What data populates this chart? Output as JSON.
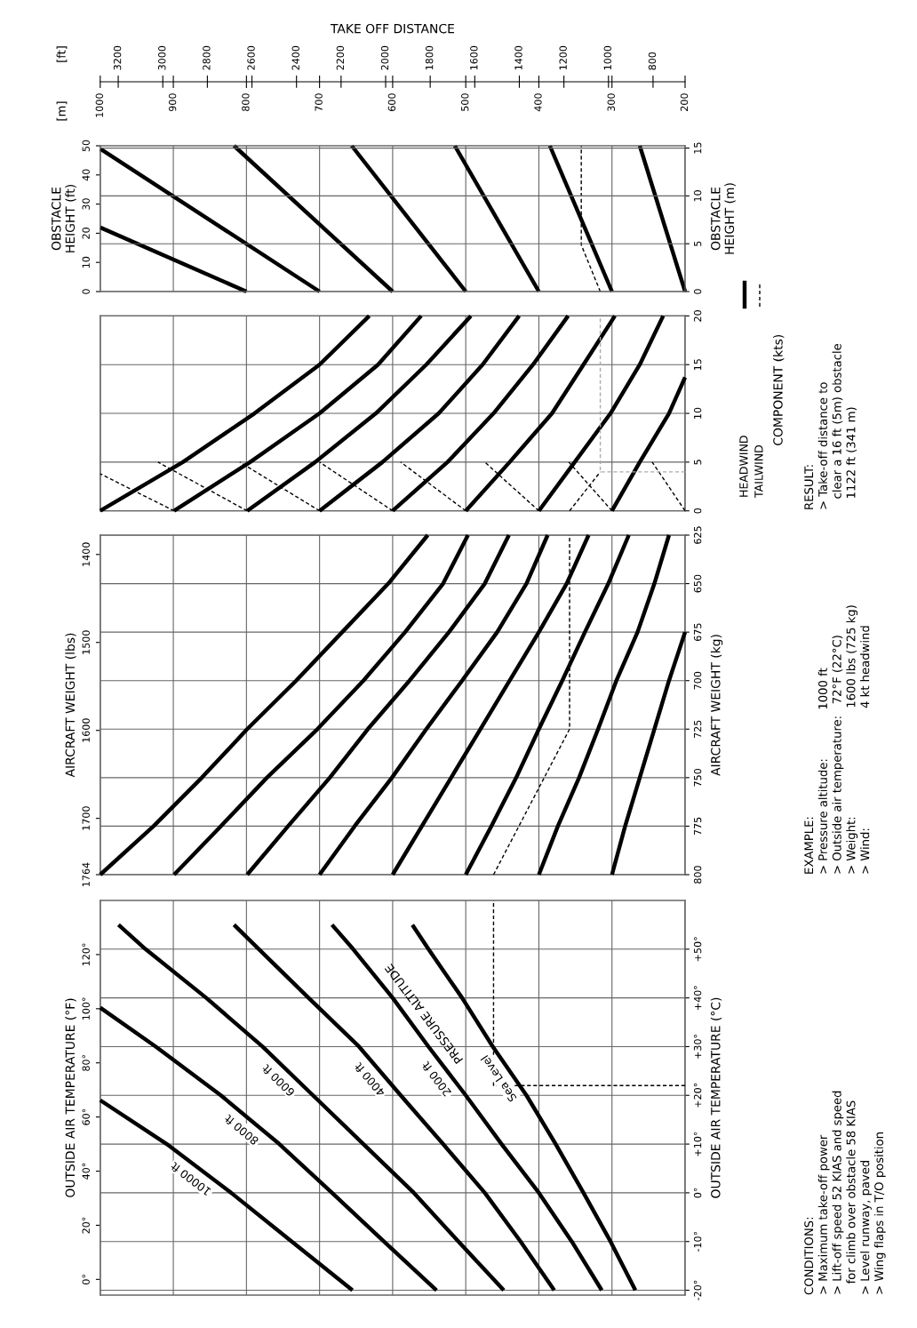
{
  "chart_data": [
    {
      "type": "line",
      "xlabel": "TAKE OFF DISTANCE",
      "ylabel": "OBSTACLE\nHEIGHT (ft)",
      "y2label": "OBSTACLE\nHEIGHT (m)",
      "xlim": [
        1000,
        200
      ],
      "xticks": [
        1000,
        900,
        800,
        700,
        600,
        500,
        400,
        300,
        200
      ],
      "x2lim": [
        3280.8,
        656.2
      ],
      "x2ticks": [
        3200,
        3000,
        2800,
        2600,
        2400,
        2200,
        2000,
        1800,
        1600,
        1400,
        1200,
        1000,
        800
      ],
      "ylim": [
        0,
        50
      ],
      "yticks": [
        0,
        10,
        20,
        30,
        40,
        50
      ],
      "y2lim": [
        0,
        15.24
      ],
      "y2ticks": [
        0,
        5,
        10,
        15
      ],
      "grid": true,
      "annotations": [
        "[m]",
        "[ft]"
      ],
      "series": [
        {
          "color": "#000000",
          "x": [
            800,
            1000
          ],
          "values": [
            0,
            22
          ]
        },
        {
          "color": "#000000",
          "x": [
            700,
            1000
          ],
          "values": [
            0,
            49
          ]
        },
        {
          "color": "#000000",
          "x": [
            600,
            817
          ],
          "values": [
            0,
            50
          ]
        },
        {
          "color": "#000000",
          "x": [
            500,
            656
          ],
          "values": [
            0,
            50
          ]
        },
        {
          "color": "#000000",
          "x": [
            400,
            515
          ],
          "values": [
            0,
            50
          ]
        },
        {
          "color": "#000000",
          "x": [
            300,
            385
          ],
          "values": [
            0,
            50
          ]
        },
        {
          "color": "#000000",
          "x": [
            200,
            262
          ],
          "values": [
            0,
            50
          ]
        },
        {
          "color": "#000000",
          "line_style": "dashed",
          "x": [
            316,
            342,
            342
          ],
          "values": [
            0,
            16,
            50
          ]
        }
      ]
    },
    {
      "type": "line",
      "y2label": "COMPONENT (kts)",
      "xlim": [
        1000,
        200
      ],
      "xticks": [
        1000,
        900,
        800,
        700,
        600,
        500,
        400,
        300,
        200
      ],
      "y2lim": [
        0,
        20
      ],
      "y2ticks": [
        0,
        5,
        10,
        15,
        20
      ],
      "grid": true,
      "tick_labels": "y",
      "legend": "right",
      "annotations": [
        "RESULT:\n> Take-off distance to\n   clear a 16 ft (5m) obstacle\n   1122 ft (341 m)"
      ],
      "series": [
        {
          "name": "HEADWIND",
          "color": "#000000",
          "axis": "y2",
          "x": [
            1000,
            887,
            789,
            700,
            632
          ],
          "values": [
            0,
            5,
            10,
            15,
            20
          ]
        },
        {
          "color": "#000000",
          "axis": "y2",
          "x": [
            899,
            795,
            700,
            620,
            561
          ],
          "values": [
            0,
            5,
            10,
            15,
            20
          ]
        },
        {
          "color": "#000000",
          "axis": "y2",
          "x": [
            799,
            706,
            623,
            554,
            493
          ],
          "values": [
            0,
            5,
            10,
            15,
            20
          ]
        },
        {
          "color": "#000000",
          "axis": "y2",
          "x": [
            700,
            614,
            537,
            477,
            427
          ],
          "values": [
            0,
            5,
            10,
            15,
            20
          ]
        },
        {
          "color": "#000000",
          "axis": "y2",
          "x": [
            600,
            525,
            462,
            408,
            360
          ],
          "values": [
            0,
            5,
            10,
            15,
            20
          ]
        },
        {
          "color": "#000000",
          "axis": "y2",
          "x": [
            500,
            440,
            382,
            339,
            296
          ],
          "values": [
            0,
            5,
            10,
            15,
            20
          ]
        },
        {
          "color": "#000000",
          "axis": "y2",
          "x": [
            400,
            351,
            302,
            262,
            230
          ],
          "values": [
            0,
            5,
            10,
            15,
            20
          ]
        },
        {
          "color": "#000000",
          "axis": "y2",
          "x": [
            300,
            262,
            222,
            200
          ],
          "values": [
            0,
            5,
            10,
            13.7
          ]
        },
        {
          "name": "TAILWIND",
          "color": "#000000",
          "axis": "y2",
          "line_style": "dashed",
          "x": [
            899,
            1000
          ],
          "values": [
            0,
            3.8
          ]
        },
        {
          "color": "#000000",
          "axis": "y2",
          "line_style": "dashed",
          "x": [
            799,
            921
          ],
          "values": [
            0,
            5
          ]
        },
        {
          "color": "#000000",
          "axis": "y2",
          "line_style": "dashed",
          "x": [
            700,
            809
          ],
          "values": [
            0,
            5
          ]
        },
        {
          "color": "#000000",
          "axis": "y2",
          "line_style": "dashed",
          "x": [
            600,
            700
          ],
          "values": [
            0,
            5
          ]
        },
        {
          "color": "#000000",
          "axis": "y2",
          "line_style": "dashed",
          "x": [
            500,
            589
          ],
          "values": [
            0,
            5
          ]
        },
        {
          "color": "#000000",
          "axis": "y2",
          "line_style": "dashed",
          "x": [
            400,
            474
          ],
          "values": [
            0,
            5
          ]
        },
        {
          "color": "#000000",
          "axis": "y2",
          "line_style": "dashed",
          "x": [
            300,
            359
          ],
          "values": [
            0,
            5
          ]
        },
        {
          "color": "#000000",
          "axis": "y2",
          "line_style": "dashed",
          "x": [
            200,
            245
          ],
          "values": [
            0,
            5
          ]
        },
        {
          "color": "#000000",
          "axis": "y2",
          "line_style": "dashed",
          "x": [
            358,
            316
          ],
          "values": [
            0,
            4
          ]
        },
        {
          "color": "#aaaaaa",
          "axis": "y2",
          "line_style": "dashed",
          "x": [
            200,
            316,
            316
          ],
          "values": [
            4,
            4,
            20
          ]
        }
      ]
    },
    {
      "type": "line",
      "ylabel": "AIRCRAFT WEIGHT (lbs)",
      "y2label": "AIRCRAFT WEIGHT (kg)",
      "xlim": [
        1000,
        200
      ],
      "xticks": [
        1000,
        900,
        800,
        700,
        600,
        500,
        400,
        300,
        200
      ],
      "ylim": [
        1764,
        1378
      ],
      "yticks": [
        1400,
        1500,
        1600,
        1700,
        1764
      ],
      "y2lim": [
        800,
        625
      ],
      "y2ticks": [
        625,
        650,
        675,
        700,
        725,
        750,
        775,
        800
      ],
      "grid": true,
      "tick_labels": "y",
      "annotations": [
        "EXAMPLE:\n> Pressure altitude:             1000 ft\n> Outside air temperature:   72°F (22°C)\n> Weight:                             1600 lbs (725 kg)\n> Wind:                                4 kt headwind"
      ],
      "series": [
        {
          "color": "#000000",
          "axis": "y2",
          "x": [
            1000,
            927,
            861,
            799,
            732,
            669,
            606,
            552
          ],
          "values": [
            800,
            775,
            750,
            725,
            700,
            675,
            650,
            625
          ]
        },
        {
          "color": "#000000",
          "axis": "y2",
          "x": [
            899,
            835,
            772,
            703,
            640,
            583,
            531,
            497
          ],
          "values": [
            800,
            775,
            750,
            725,
            700,
            675,
            650,
            625
          ]
        },
        {
          "color": "#000000",
          "axis": "y2",
          "x": [
            799,
            743,
            686,
            634,
            577,
            523,
            474,
            441
          ],
          "values": [
            800,
            775,
            750,
            725,
            700,
            675,
            650,
            625
          ]
        },
        {
          "color": "#000000",
          "axis": "y2",
          "x": [
            700,
            652,
            601,
            554,
            505,
            457,
            417,
            388
          ],
          "values": [
            800,
            775,
            750,
            725,
            700,
            675,
            650,
            625
          ]
        },
        {
          "color": "#000000",
          "axis": "y2",
          "x": [
            600,
            560,
            520,
            480,
            440,
            400,
            362,
            332
          ],
          "values": [
            800,
            775,
            750,
            725,
            700,
            675,
            650,
            625
          ]
        },
        {
          "color": "#000000",
          "axis": "y2",
          "x": [
            500,
            465,
            431,
            400,
            368,
            337,
            305,
            277
          ],
          "values": [
            800,
            775,
            750,
            725,
            700,
            675,
            650,
            625
          ]
        },
        {
          "color": "#000000",
          "axis": "y2",
          "x": [
            400,
            374,
            345,
            319,
            294,
            265,
            242,
            222
          ],
          "values": [
            800,
            775,
            750,
            725,
            700,
            675,
            650,
            625
          ]
        },
        {
          "color": "#000000",
          "axis": "y2",
          "x": [
            300,
            282,
            262,
            242,
            222,
            200
          ],
          "values": [
            800,
            775,
            750,
            725,
            700,
            675
          ]
        },
        {
          "color": "#000000",
          "axis": "y2",
          "line_style": "dashed",
          "x": [
            462,
            358,
            358
          ],
          "values": [
            800,
            725,
            625
          ]
        }
      ]
    },
    {
      "type": "line",
      "ylabel": "OUTSIDE AIR TEMPERATURE (°F)",
      "y2label": "OUTSIDE AIR TEMPERATURE (°C)",
      "xlim": [
        1000,
        200
      ],
      "xticks": [
        1000,
        900,
        800,
        700,
        600,
        500,
        400,
        300,
        200
      ],
      "ylim": [
        -5.8,
        140
      ],
      "yticks": [
        {
          "value": 0,
          "label": "0°"
        },
        {
          "value": 20,
          "label": "20°"
        },
        {
          "value": 40,
          "label": "40°"
        },
        {
          "value": 60,
          "label": "60°"
        },
        {
          "value": 80,
          "label": "80°"
        },
        {
          "value": 100,
          "label": "100°"
        },
        {
          "value": 120,
          "label": "120°"
        }
      ],
      "y2lim": [
        -21,
        60
      ],
      "y2ticks": [
        {
          "value": -20,
          "label": "-20°"
        },
        {
          "value": -10,
          "label": "-10°"
        },
        {
          "value": 0,
          "label": "0°"
        },
        {
          "value": 10,
          "label": "+10°"
        },
        {
          "value": 20,
          "label": "+20°"
        },
        {
          "value": 30,
          "label": "+30°"
        },
        {
          "value": 40,
          "label": "+40°"
        },
        {
          "value": 50,
          "label": "+50°"
        }
      ],
      "grid": true,
      "tick_labels": "y",
      "annotations": [
        "PRESSURE ALTITUDE",
        "CONDITIONS:\n> Maximum take-off power\n> Lift-off speed 52 KIAS and speed\n   for climb over obstacle 58 KIAS\n> Level runway, paved\n> Wing flaps in T/O position"
      ],
      "series": [
        {
          "name": "10000 ft",
          "color": "#000000",
          "axis": "y2",
          "x": [
            1000,
            909,
            821,
            738,
            655
          ],
          "values": [
            19,
            10,
            0,
            -10,
            -20
          ]
        },
        {
          "name": "8000 ft",
          "color": "#000000",
          "axis": "y2",
          "x": [
            1000,
            924,
            835,
            755,
            683,
            612,
            540
          ],
          "values": [
            38,
            30,
            20,
            10,
            0,
            -10,
            -20
          ]
        },
        {
          "name": "6000 ft",
          "color": "#000000",
          "axis": "y2",
          "x": [
            975,
            938,
            855,
            778,
            709,
            640,
            571,
            510,
            448
          ],
          "values": [
            55,
            50,
            40,
            30,
            20,
            10,
            0,
            -10,
            -20
          ]
        },
        {
          "name": "4000 ft",
          "color": "#000000",
          "axis": "y2",
          "x": [
            817,
            783,
            715,
            646,
            589,
            531,
            474,
            425,
            379
          ],
          "values": [
            55,
            50,
            40,
            30,
            20,
            10,
            0,
            -10,
            -20
          ]
        },
        {
          "name": "2000 ft",
          "color": "#000000",
          "axis": "y2",
          "x": [
            683,
            654,
            600,
            551,
            500,
            451,
            400,
            355,
            314
          ],
          "values": [
            55,
            50,
            40,
            30,
            20,
            10,
            0,
            -10,
            -20
          ]
        },
        {
          "name": "Sea Level",
          "color": "#000000",
          "axis": "y2",
          "x": [
            573,
            551,
            505,
            463,
            417,
            377,
            339,
            302,
            268
          ],
          "values": [
            55,
            50,
            40,
            30,
            20,
            10,
            0,
            -10,
            -20
          ]
        },
        {
          "color": "#000000",
          "axis": "y2",
          "line_style": "dashed",
          "x": [
            200,
            462,
            462
          ],
          "values": [
            22,
            22,
            60
          ]
        }
      ]
    }
  ]
}
